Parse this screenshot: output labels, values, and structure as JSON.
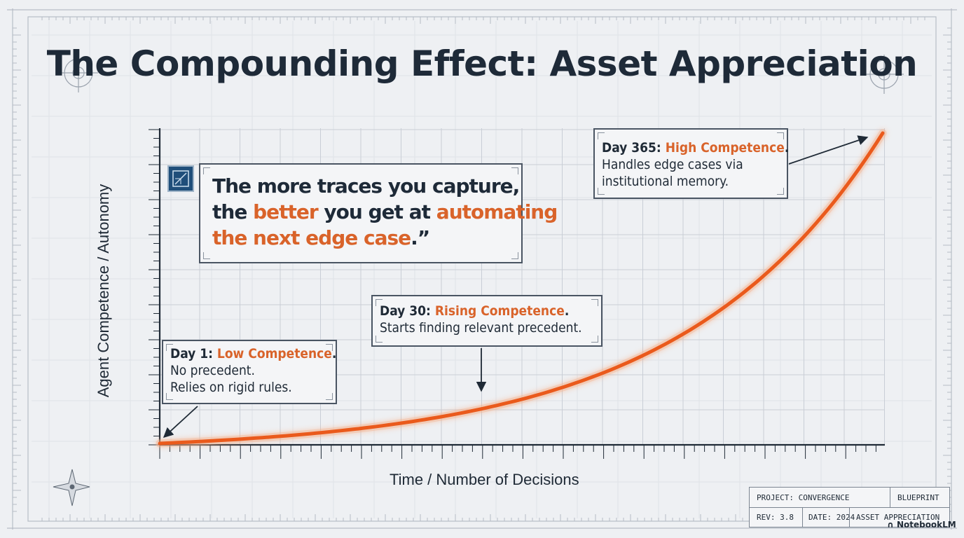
{
  "title": "The Compounding Effect: Asset Appreciation",
  "quote": {
    "line1": "The more traces you capture,",
    "line2_a": "the ",
    "line2_b": "better",
    "line2_c": " you get at ",
    "line2_d": "automating",
    "line3_a": "the next edge case",
    "line3_b": ".”"
  },
  "annotations": [
    {
      "day": "Day 1:",
      "label": "Low Competence",
      "period": ".",
      "lines": [
        "No precedent.",
        "Relies on rigid rules."
      ]
    },
    {
      "day": "Day 30:",
      "label": "Rising Competence",
      "period": ".",
      "lines": [
        "Starts finding relevant precedent."
      ]
    },
    {
      "day": "Day 365:",
      "label": "High Competence",
      "period": ".",
      "lines": [
        "Handles edge cases via",
        "institutional memory."
      ]
    }
  ],
  "chart_data": {
    "type": "line",
    "xlabel": "Time / Number of Decisions",
    "ylabel": "Agent Competence / Autonomy",
    "curve": "exponential",
    "markers": [
      {
        "x": 1,
        "label": "Day 1"
      },
      {
        "x": 30,
        "label": "Day 30"
      },
      {
        "x": 365,
        "label": "Day 365"
      }
    ]
  },
  "stamp": {
    "project": "PROJECT: CONVERGENCE",
    "type": "BLUEPRINT",
    "rev": "REV: 3.8",
    "date": "DATE: 2024",
    "name": "ASSET APPRECIATION"
  },
  "brand": "NotebookLM",
  "colors": {
    "accent": "#ea5a1c",
    "text": "#1e2a38",
    "grid": "#c9ced6",
    "background": "#eef0f3"
  }
}
